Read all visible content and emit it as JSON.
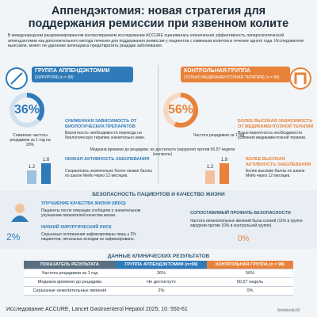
{
  "header": {
    "title": "Аппендэктомия: новая стратегия для поддержания ремиссии при язвенном колите",
    "intro": "В международном рандомизированном контролируемом исследовании ACCURE оценивалась клиническая эффективность лапароскопической аппендэктомии как дополнительного метода лечения для поддержания ремиссии у пациентов с язвенным колитом в течение одного года. Исследователи выяснили, может ли удаление аппендикса предотвратить рецидив заболевания."
  },
  "surgery": {
    "group": "ГРУППА АППЕНДЭКТОМИИ",
    "group_sub": "(ХИРУРГИЯ) (n = 99)",
    "rate": "36%",
    "rate_note": "Снижение частоты рецидивов за 1 год на 20%",
    "bio_title": "СНИЖЕННАЯ ЗАВИСИМОСТЬ ОТ БИОЛОГИЧЕСКИХ ПРЕПАРАТОВ",
    "bio_text": "Вероятность необходимости перехода на биологическую терапию значительно ниже.",
    "bars": [
      1.2,
      1.8
    ],
    "activity_title": "НИЗКАЯ АКТИВНОСТЬ ЗАБОЛЕВАНИЯ",
    "activity_text": "Сохранялись значительно более низкие баллы по шкале Мейо через 12 месяцев."
  },
  "control": {
    "group": "КОНТРОЛЬНАЯ ГРУППА",
    "group_sub": "(ТОЛЬКО МЕДИКАМЕНТОЗНАЯ ТЕРАПИЯ) (n = 98)",
    "rate": "56%",
    "rate_note": "Частота рецидивов за 1 год",
    "bio_title": "БОЛЕЕ ВЫСОКАЯ ЗАВИСИМОСТЬ ОТ МЕДИКАМЕНТОЗНОЙ ТЕРАПИИ",
    "bio_text": "Выше вероятность необходимости усиления медикаментозной терапии.",
    "bars": [
      1.2,
      1.8
    ],
    "activity_title": "БОЛЕЕ ВЫСОКАЯ АКТИВНОСТЬ ЗАБОЛЕВАНИЯ",
    "activity_text": "Более высокие баллы по шкале Мейо через 12 месяцев."
  },
  "median": "Медиана времени до рецидива: не достигнута (хирургия) против 50,57 недели (контроль)",
  "safety": {
    "title": "БЕЗОПАСНОСТЬ ПАЦИЕНТОВ И КАЧЕСТВО ЖИЗНИ",
    "qol_title": "УЛУЧШЕНИЕ КАЧЕСТВА ЖИЗНИ (IBDQ)",
    "qol_text": "Пациенты после операции сообщили о значительном улучшении показателей качества жизни.",
    "risk_value": "2%",
    "risk_title": "НИЗКИЙ ХИРУРГИЧЕСКИЙ РИСК",
    "risk_text": "Серьезные осложнения зафиксированы лишь у 2% пациентов, летальных исходов не зафиксировано.",
    "profile_title": "СОПОСТАВИМЫЙ ПРОФИЛЬ БЕЗОПАСНОСТИ",
    "profile_text": "Частота нежелательных явлений была схожей (11% в группе хирургии против 10% в контрольной группе).",
    "profile_value": "0%"
  },
  "table": {
    "title": "ДАННЫЕ КЛИНИЧЕСКИХ РЕЗУЛЬТАТОВ",
    "columns": [
      "ПОКАЗАТЕЛЬ РЕЗУЛЬТАТА",
      "ГРУППА АППЕНДЭКТОМИИ (n=99)",
      "КОНТРОЛЬНАЯ ГРУППА (n = 98)"
    ],
    "rows": [
      [
        "Частота рецидивов за 1 год",
        "36%",
        "56%"
      ],
      [
        "Медиана времени до рецидива",
        "Не достигнуто",
        "50,57 недель"
      ],
      [
        "Серьезные нежелательные явления",
        "2%",
        "0%"
      ]
    ]
  },
  "footer": {
    "source": "Исследование ACCURE, Lancet Gastroenterol Hepatol 2025; 10: 550-61",
    "brand": "NotebookLM"
  }
}
